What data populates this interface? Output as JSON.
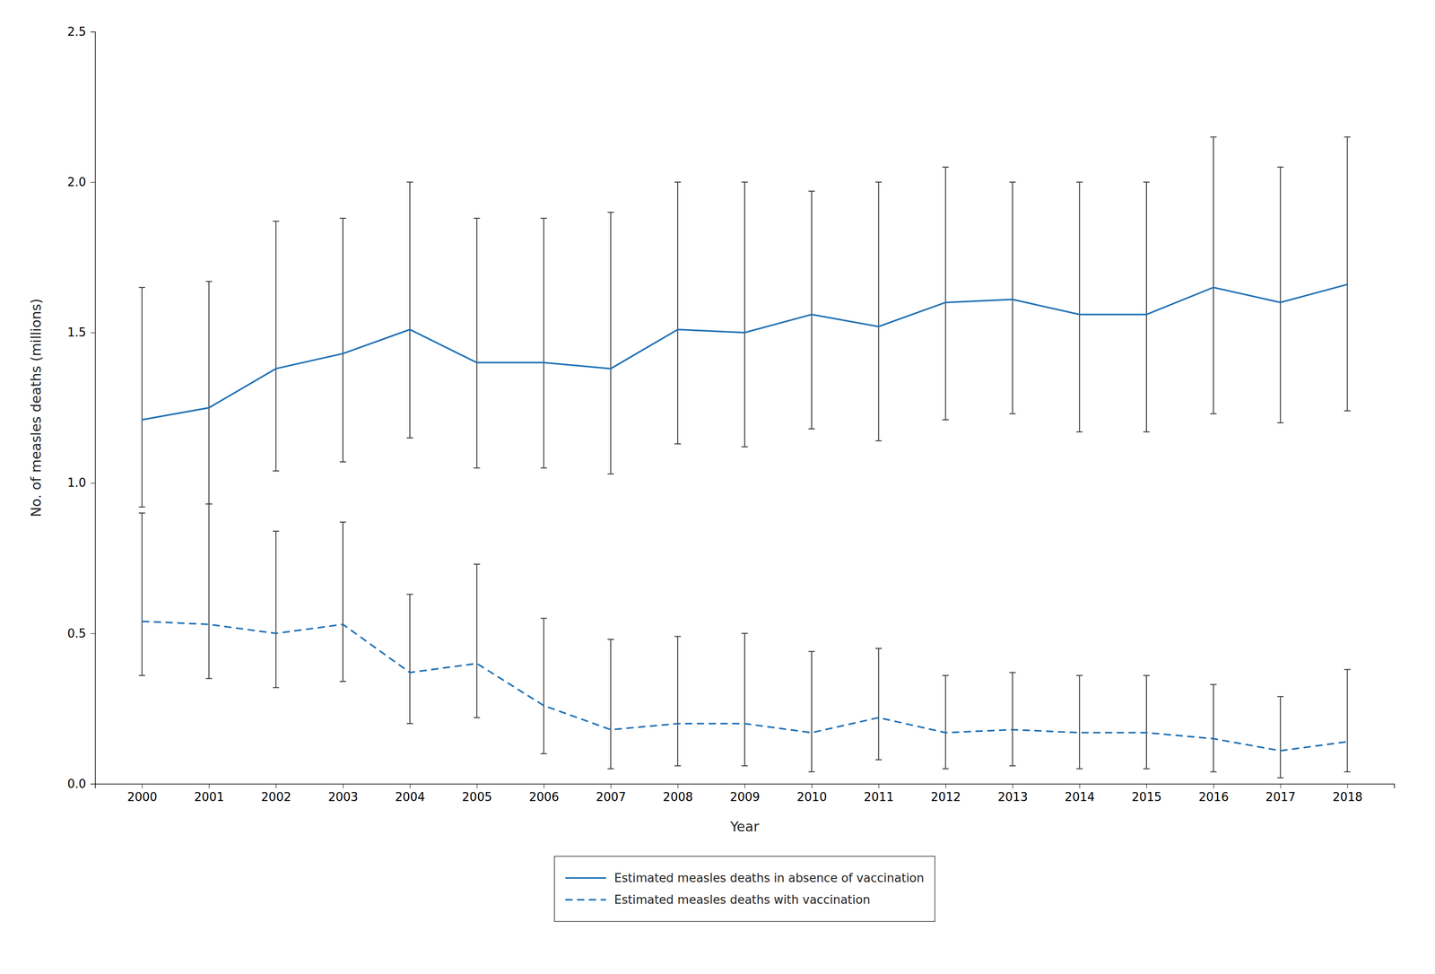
{
  "chart_data": {
    "type": "line",
    "xlabel": "Year",
    "ylabel": "No. of measles deaths (millions)",
    "x": [
      2000,
      2001,
      2002,
      2003,
      2004,
      2005,
      2006,
      2007,
      2008,
      2009,
      2010,
      2011,
      2012,
      2013,
      2014,
      2015,
      2016,
      2017,
      2018
    ],
    "series": [
      {
        "name": "Estimated measles deaths in absence of vaccination",
        "color": "#2171b5",
        "line_style": "solid",
        "values": [
          1.21,
          1.25,
          1.38,
          1.43,
          1.51,
          1.4,
          1.4,
          1.38,
          1.51,
          1.5,
          1.56,
          1.52,
          1.6,
          1.61,
          1.56,
          1.56,
          1.65,
          1.6,
          1.66
        ],
        "upper": [
          1.65,
          1.67,
          1.87,
          1.88,
          2.0,
          1.88,
          1.88,
          1.9,
          2.0,
          2.0,
          1.97,
          2.0,
          2.05,
          2.0,
          2.0,
          2.0,
          2.15,
          2.05,
          2.15
        ],
        "lower": [
          0.92,
          0.93,
          1.04,
          1.07,
          1.15,
          1.05,
          1.05,
          1.03,
          1.13,
          1.12,
          1.18,
          1.14,
          1.21,
          1.23,
          1.17,
          1.17,
          1.23,
          1.2,
          1.24
        ]
      },
      {
        "name": "Estimated measles deaths with vaccination",
        "color": "#2171b5",
        "line_style": "dashed",
        "values": [
          0.54,
          0.53,
          0.5,
          0.53,
          0.37,
          0.4,
          0.26,
          0.18,
          0.2,
          0.2,
          0.17,
          0.22,
          0.17,
          0.18,
          0.17,
          0.17,
          0.15,
          0.11,
          0.14
        ],
        "upper": [
          0.9,
          0.93,
          0.84,
          0.87,
          0.63,
          0.73,
          0.55,
          0.48,
          0.49,
          0.5,
          0.44,
          0.45,
          0.36,
          0.37,
          0.36,
          0.36,
          0.33,
          0.29,
          0.38
        ],
        "lower": [
          0.36,
          0.35,
          0.32,
          0.34,
          0.2,
          0.22,
          0.1,
          0.05,
          0.06,
          0.06,
          0.04,
          0.08,
          0.05,
          0.06,
          0.05,
          0.05,
          0.04,
          0.02,
          0.04
        ]
      }
    ],
    "xlim": [
      1999.3,
      2018.7
    ],
    "xticks": [
      2000,
      2001,
      2002,
      2003,
      2004,
      2005,
      2006,
      2007,
      2008,
      2009,
      2010,
      2011,
      2012,
      2013,
      2014,
      2015,
      2016,
      2017,
      2018
    ],
    "ylim": [
      0.0,
      2.5
    ],
    "yticks": [
      {
        "value": 0.0,
        "label": "0.0"
      },
      0.5,
      {
        "value": 1.0,
        "label": "1.0"
      },
      1.5,
      {
        "value": 2.0,
        "label": "2.0"
      },
      2.5
    ],
    "grid": false,
    "legend": "bottom"
  }
}
